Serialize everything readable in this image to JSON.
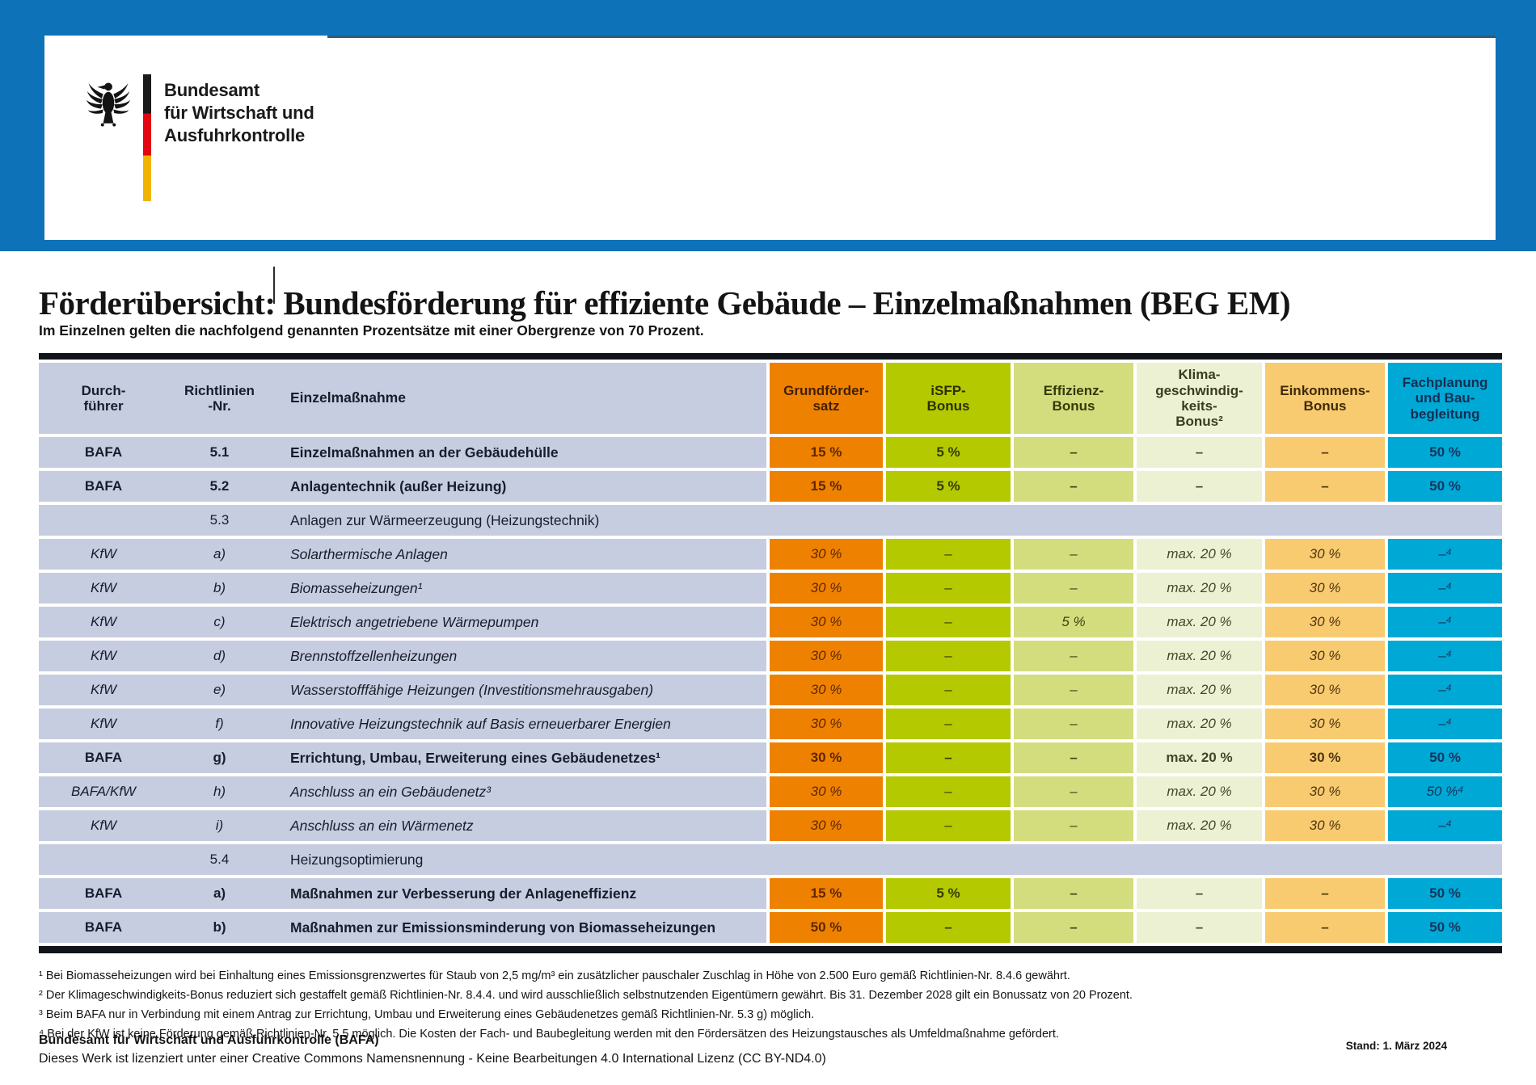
{
  "colors": {
    "band_blue": "#0d72b8",
    "lavender": "#c7cde0",
    "orange": "#ee8200",
    "isfp_green": "#b5c900",
    "eff_green": "#d4dd7e",
    "klima_cream": "#edf1d3",
    "income_tan": "#f9cb70",
    "cyan": "#00a8d6",
    "flag_black": "#1a1a1a",
    "flag_red": "#e30613",
    "flag_gold": "#f0b400"
  },
  "logo": {
    "line1": "Bundesamt",
    "line2": "für Wirtschaft und",
    "line3": "Ausfuhrkontrolle"
  },
  "header": {
    "title": "Förderübersicht: Bundesförderung für effiziente Gebäude – Einzelmaßnahmen (BEG EM)",
    "subtitle": "Im Einzelnen gelten die nachfolgend genannten Prozentsätze mit einer Obergrenze von 70 Prozent."
  },
  "table": {
    "headers": [
      "Durch-\nführer",
      "Richtlinien\n-Nr.",
      "Einzelmaßnahme",
      "Grundförder-\nsatz",
      "iSFP-\nBonus",
      "Effizienz-\nBonus",
      "Klima-\ngeschwindig-\nkeits-\nBonus²",
      "Einkommens-\nBonus",
      "Fachplanung\nund Bau-\nbegleitung"
    ],
    "rows": [
      {
        "type": "data",
        "style": "bold",
        "cells": [
          "BAFA",
          "5.1",
          "Einzelmaßnahmen an der Gebäudehülle",
          "15 %",
          "5 %",
          "–",
          "–",
          "–",
          "50 %"
        ]
      },
      {
        "type": "data",
        "style": "bold",
        "cells": [
          "BAFA",
          "5.2",
          "Anlagentechnik (außer Heizung)",
          "15 %",
          "5 %",
          "–",
          "–",
          "–",
          "50 %"
        ]
      },
      {
        "type": "section",
        "cells": [
          "",
          "5.3",
          "Anlagen zur Wärmeerzeugung (Heizungstechnik)"
        ]
      },
      {
        "type": "data",
        "style": "italic",
        "cells": [
          "KfW",
          "a)",
          "Solarthermische Anlagen",
          "30 %",
          "–",
          "–",
          "max. 20 %",
          "30 %",
          "–⁴"
        ]
      },
      {
        "type": "data",
        "style": "italic",
        "cells": [
          "KfW",
          "b)",
          "Biomasseheizungen¹",
          "30 %",
          "–",
          "–",
          "max. 20 %",
          "30 %",
          "–⁴"
        ]
      },
      {
        "type": "data",
        "style": "italic",
        "cells": [
          "KfW",
          "c)",
          "Elektrisch angetriebene Wärmepumpen",
          "30 %",
          "–",
          "5 %",
          "max. 20 %",
          "30 %",
          "–⁴"
        ]
      },
      {
        "type": "data",
        "style": "italic",
        "cells": [
          "KfW",
          "d)",
          "Brennstoffzellenheizungen",
          "30 %",
          "–",
          "–",
          "max. 20 %",
          "30 %",
          "–⁴"
        ]
      },
      {
        "type": "data",
        "style": "italic",
        "cells": [
          "KfW",
          "e)",
          "Wasserstofffähige Heizungen (Investitionsmehrausgaben)",
          "30 %",
          "–",
          "–",
          "max. 20 %",
          "30 %",
          "–⁴"
        ]
      },
      {
        "type": "data",
        "style": "italic",
        "cells": [
          "KfW",
          "f)",
          "Innovative Heizungstechnik auf Basis erneuerbarer Energien",
          "30 %",
          "–",
          "–",
          "max. 20 %",
          "30 %",
          "–⁴"
        ]
      },
      {
        "type": "data",
        "style": "bold",
        "cells": [
          "BAFA",
          "g)",
          "Errichtung, Umbau, Erweiterung eines Gebäudenetzes¹",
          "30 %",
          "–",
          "–",
          "max. 20 %",
          "30 %",
          "50 %"
        ]
      },
      {
        "type": "data",
        "style": "italic",
        "cells": [
          "BAFA/KfW",
          "h)",
          "Anschluss an ein Gebäudenetz³",
          "30 %",
          "–",
          "–",
          "max. 20 %",
          "30 %",
          "50 %⁴"
        ]
      },
      {
        "type": "data",
        "style": "italic",
        "cells": [
          "KfW",
          "i)",
          "Anschluss an ein Wärmenetz",
          "30 %",
          "–",
          "–",
          "max. 20 %",
          "30 %",
          "–⁴"
        ]
      },
      {
        "type": "section",
        "cells": [
          "",
          "5.4",
          "Heizungsoptimierung"
        ]
      },
      {
        "type": "data",
        "style": "bold",
        "cells": [
          "BAFA",
          "a)",
          "Maßnahmen zur Verbesserung der Anlageneffizienz",
          "15 %",
          "5 %",
          "–",
          "–",
          "–",
          "50 %"
        ]
      },
      {
        "type": "data",
        "style": "bold",
        "cells": [
          "BAFA",
          "b)",
          "Maßnahmen zur Emissionsminderung von Biomasseheizungen",
          "50 %",
          "–",
          "–",
          "–",
          "–",
          "50 %"
        ]
      }
    ]
  },
  "footnotes": [
    "¹ Bei Biomasseheizungen wird bei Einhaltung eines Emissionsgrenzwertes für Staub von 2,5 mg/m³ ein zusätzlicher pauschaler Zuschlag in Höhe von 2.500 Euro gemäß Richtlinien-Nr. 8.4.6 gewährt.",
    "² Der Klimageschwindigkeits-Bonus reduziert sich gestaffelt gemäß Richtlinien-Nr. 8.4.4. und wird ausschließlich selbstnutzenden Eigentümern gewährt. Bis 31. Dezember 2028 gilt ein Bonussatz von 20 Prozent.",
    "³ Beim BAFA nur in Verbindung mit einem Antrag zur Errichtung, Umbau und Erweiterung eines Gebäudenetzes gemäß Richtlinien-Nr. 5.3 g) möglich.",
    "⁴ Bei der KfW ist keine Förderung gemäß Richtlinien-Nr. 5.5 möglich. Die Kosten der Fach- und Baubegleitung werden mit den Fördersätzen des Heizungstausches als Umfeldmaßnahme gefördert."
  ],
  "footer": {
    "org": "Bundesamt für Wirtschaft und Ausfuhrkontrolle (BAFA)",
    "license": "Dieses Werk ist lizenziert unter einer Creative Commons Namensnennung - Keine Bearbeitungen 4.0 International Lizenz (CC BY-ND4.0)",
    "stand": "Stand: 1. März 2024"
  }
}
